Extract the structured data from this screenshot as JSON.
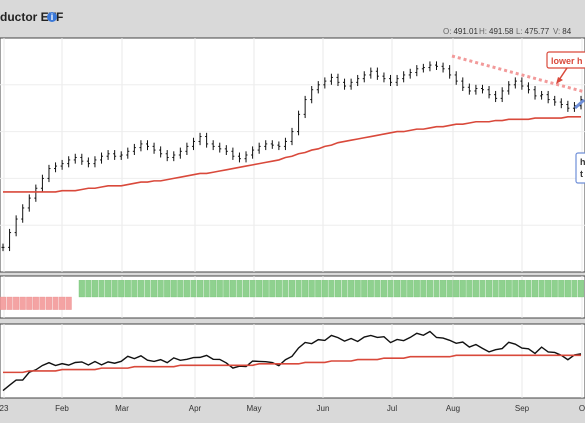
{
  "header": {
    "title": "ductor ETF",
    "ohlc": [
      {
        "key": "O:",
        "value": "491.01"
      },
      {
        "key": "H:",
        "value": "491.58"
      },
      {
        "key": "L:",
        "value": "475.77"
      },
      {
        "key": "V:",
        "value": "84"
      }
    ]
  },
  "annotations": {
    "lower_high": "lower h",
    "box_text_1": "h",
    "box_text_2": "t"
  },
  "colors": {
    "price": "#111111",
    "ma": "#d9493b",
    "trendline": "#f29a9a",
    "up_bar": "#8fd18f",
    "down_bar": "#f4a3a3",
    "annotation": "#d9493b",
    "arrow": "#6f8fd8"
  },
  "chart_data": [
    {
      "type": "line",
      "panel": "price",
      "x_tick_labels": [
        "23",
        "Feb",
        "Mar",
        "Apr",
        "May",
        "Jun",
        "Jul",
        "Aug",
        "Sep",
        "O"
      ],
      "series": [
        {
          "values": [
            350,
            362,
            373,
            382,
            390,
            398,
            406,
            414,
            416,
            418,
            421,
            423,
            420,
            418,
            421,
            424,
            426,
            424,
            425,
            428,
            431,
            434,
            432,
            429,
            426,
            423,
            425,
            428,
            432,
            436,
            440,
            434,
            432,
            430,
            428,
            424,
            422,
            425,
            429,
            432,
            434,
            433,
            432,
            436,
            444,
            458,
            470,
            478,
            482,
            485,
            488,
            484,
            481,
            484,
            487,
            490,
            493,
            489,
            487,
            484,
            487,
            490,
            492,
            495,
            496,
            498,
            497,
            495,
            490,
            485,
            480,
            477,
            479,
            478,
            474,
            471,
            477,
            482,
            485,
            481,
            478,
            473,
            474,
            470,
            468,
            466,
            463,
            465,
            470
          ]
        },
        {
          "values": [
            395,
            395,
            395,
            395,
            395,
            395,
            395,
            395,
            395,
            396,
            396,
            396,
            397,
            398,
            398,
            399,
            400,
            400,
            400,
            401,
            402,
            403,
            403,
            404,
            404,
            405,
            406,
            407,
            408,
            409,
            410,
            410,
            411,
            412,
            413,
            414,
            415,
            416,
            417,
            418,
            419,
            420,
            421,
            423,
            424,
            426,
            427,
            429,
            430,
            432,
            433,
            435,
            436,
            437,
            438,
            439,
            440,
            441,
            442,
            443,
            444,
            444,
            445,
            446,
            446,
            447,
            448,
            448,
            449,
            450,
            450,
            451,
            452,
            452,
            452,
            453,
            453,
            454,
            454,
            454,
            454,
            455,
            455,
            455,
            455,
            455,
            456,
            456,
            456
          ]
        }
      ],
      "ylim": [
        330,
        520
      ]
    },
    {
      "type": "bar",
      "panel": "indicator",
      "values": [
        -6,
        -6,
        -6,
        -6,
        -6,
        -6,
        -6,
        -6,
        -6,
        -6,
        -6,
        0,
        8,
        8,
        8,
        8,
        8,
        8,
        8,
        8,
        8,
        8,
        8,
        8,
        8,
        8,
        8,
        8,
        8,
        8,
        8,
        8,
        8,
        8,
        8,
        8,
        8,
        8,
        8,
        8,
        8,
        8,
        8,
        8,
        8,
        8,
        8,
        8,
        8,
        8,
        8,
        8,
        8,
        8,
        8,
        8,
        8,
        8,
        8,
        8,
        8,
        8,
        8,
        8,
        8,
        8,
        8,
        8,
        8,
        8,
        8,
        8,
        8,
        8,
        8,
        8,
        8,
        8,
        8,
        8,
        8,
        8,
        8,
        8,
        8,
        8,
        8,
        8,
        8
      ],
      "ylim": [
        -10,
        10
      ]
    },
    {
      "type": "line",
      "panel": "ratio",
      "series": [
        {
          "values": [
            0.42,
            0.47,
            0.5,
            0.53,
            0.56,
            0.58,
            0.6,
            0.61,
            0.62,
            0.62,
            0.63,
            0.63,
            0.62,
            0.61,
            0.62,
            0.63,
            0.64,
            0.63,
            0.64,
            0.65,
            0.66,
            0.67,
            0.66,
            0.65,
            0.64,
            0.63,
            0.64,
            0.65,
            0.66,
            0.67,
            0.68,
            0.66,
            0.65,
            0.64,
            0.63,
            0.61,
            0.6,
            0.61,
            0.62,
            0.63,
            0.64,
            0.63,
            0.63,
            0.64,
            0.67,
            0.72,
            0.76,
            0.78,
            0.79,
            0.8,
            0.81,
            0.79,
            0.78,
            0.79,
            0.8,
            0.81,
            0.82,
            0.8,
            0.79,
            0.78,
            0.79,
            0.8,
            0.81,
            0.82,
            0.82,
            0.83,
            0.82,
            0.81,
            0.79,
            0.77,
            0.75,
            0.74,
            0.75,
            0.74,
            0.72,
            0.71,
            0.73,
            0.75,
            0.76,
            0.74,
            0.73,
            0.71,
            0.72,
            0.7,
            0.69,
            0.68,
            0.67,
            0.68,
            0.7
          ]
        },
        {
          "values": [
            0.56,
            0.56,
            0.56,
            0.56,
            0.57,
            0.57,
            0.57,
            0.57,
            0.57,
            0.58,
            0.58,
            0.58,
            0.58,
            0.58,
            0.58,
            0.59,
            0.59,
            0.59,
            0.59,
            0.59,
            0.6,
            0.6,
            0.6,
            0.6,
            0.6,
            0.6,
            0.6,
            0.61,
            0.61,
            0.61,
            0.61,
            0.61,
            0.61,
            0.61,
            0.61,
            0.61,
            0.61,
            0.61,
            0.61,
            0.62,
            0.62,
            0.62,
            0.62,
            0.62,
            0.62,
            0.62,
            0.63,
            0.63,
            0.63,
            0.63,
            0.64,
            0.64,
            0.64,
            0.64,
            0.65,
            0.65,
            0.65,
            0.65,
            0.66,
            0.66,
            0.66,
            0.66,
            0.67,
            0.67,
            0.67,
            0.67,
            0.67,
            0.67,
            0.67,
            0.68,
            0.68,
            0.68,
            0.68,
            0.68,
            0.68,
            0.68,
            0.68,
            0.68,
            0.68,
            0.68,
            0.68,
            0.68,
            0.68,
            0.68,
            0.68,
            0.68,
            0.68,
            0.68,
            0.68
          ]
        }
      ],
      "ylim": [
        0.38,
        0.9
      ]
    }
  ]
}
